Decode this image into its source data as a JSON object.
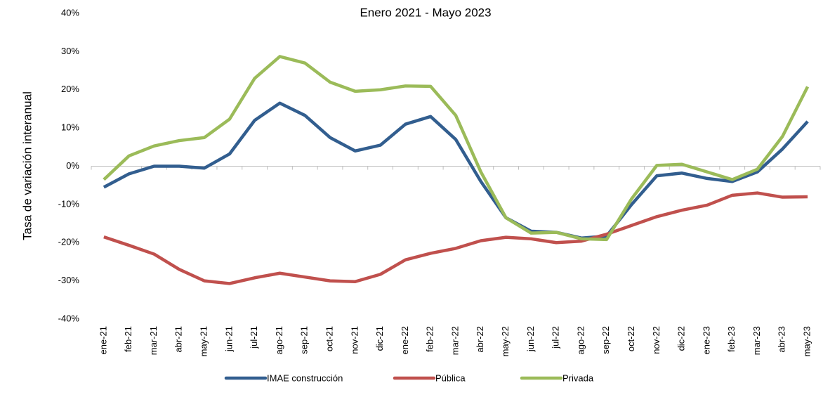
{
  "chart_data": {
    "type": "line",
    "title": "Enero 2021 - Mayo 2023",
    "y_label": "Tasa de variación interanual",
    "categories": [
      "ene-21",
      "feb-21",
      "mar-21",
      "abr-21",
      "may-21",
      "jun-21",
      "jul-21",
      "ago-21",
      "sep-21",
      "oct-21",
      "nov-21",
      "dic-21",
      "ene-22",
      "feb-22",
      "mar-22",
      "abr-22",
      "may-22",
      "jun-22",
      "jul-22",
      "ago-22",
      "sep-22",
      "oct-22",
      "nov-22",
      "dic-22",
      "ene-23",
      "feb-23",
      "mar-23",
      "abr-23",
      "may-23"
    ],
    "series": [
      {
        "name": "IMAE construcción",
        "color": "#325e8f",
        "values": [
          -5.5,
          -2,
          0,
          0,
          -0.5,
          3.2,
          12,
          16.5,
          13.3,
          7.5,
          4,
          5.5,
          11,
          13,
          7,
          -4,
          -13.5,
          -17,
          -17.3,
          -18.8,
          -18.3,
          -10,
          -2.5,
          -1.8,
          -3.2,
          -4,
          -1.5,
          4.5,
          11.7
        ]
      },
      {
        "name": "Pública",
        "color": "#c0504d",
        "values": [
          -18.5,
          -20.7,
          -23,
          -27,
          -30,
          -30.7,
          -29.2,
          -28,
          -29,
          -30,
          -30.2,
          -28.3,
          -24.5,
          -22.8,
          -21.5,
          -19.5,
          -18.6,
          -19,
          -20,
          -19.6,
          -17.8,
          -15.5,
          -13.2,
          -11.5,
          -10.2,
          -7.6,
          -7,
          -8.1,
          -8
        ]
      },
      {
        "name": "Privada",
        "color": "#9bbb59",
        "values": [
          -3.5,
          2.7,
          5.3,
          6.7,
          7.5,
          12.3,
          23,
          28.7,
          27,
          22,
          19.6,
          20,
          21,
          20.9,
          13.3,
          -1.5,
          -13.5,
          -17.5,
          -17.3,
          -19,
          -19.2,
          -8.5,
          0.2,
          0.5,
          -1.5,
          -3.5,
          -0.8,
          7.8,
          20.8
        ]
      }
    ],
    "ylim": [
      -40,
      40
    ],
    "yticks": [
      {
        "value": -40,
        "label": "-40%"
      },
      {
        "value": -30,
        "label": "-30%"
      },
      {
        "value": -20,
        "label": "-20%"
      },
      {
        "value": -10,
        "label": "-10%"
      },
      {
        "value": 0,
        "label": "0%"
      },
      {
        "value": 10,
        "label": "10%"
      },
      {
        "value": 20,
        "label": "20%"
      },
      {
        "value": 30,
        "label": "30%"
      },
      {
        "value": 40,
        "label": "40%"
      }
    ],
    "grid": false,
    "legend": "bottom"
  }
}
